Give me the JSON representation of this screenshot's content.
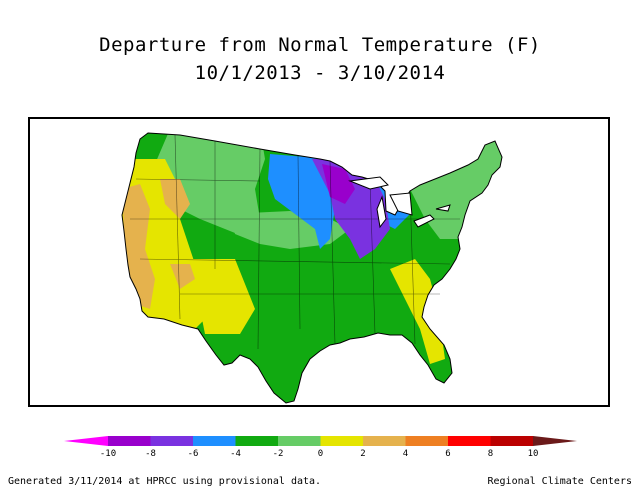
{
  "title": "Departure from Normal Temperature (F)",
  "subtitle": "10/1/2013 - 3/10/2014",
  "legend": {
    "colors": [
      "#ff00ff",
      "#9900cc",
      "#7a32e0",
      "#1e8fff",
      "#11aa11",
      "#66cc66",
      "#e5e500",
      "#e5b24d",
      "#ee7f22",
      "#ff0000",
      "#bb0000",
      "#6b1a1a"
    ],
    "bins": [
      {
        "from": null,
        "to": -10,
        "color": "#ff00ff"
      },
      {
        "from": -10,
        "to": -8,
        "color": "#9900cc"
      },
      {
        "from": -8,
        "to": -6,
        "color": "#7a32e0"
      },
      {
        "from": -6,
        "to": -4,
        "color": "#1e8fff"
      },
      {
        "from": -4,
        "to": -2,
        "color": "#11aa11"
      },
      {
        "from": -2,
        "to": 0,
        "color": "#66cc66"
      },
      {
        "from": 0,
        "to": 2,
        "color": "#e5e500"
      },
      {
        "from": 2,
        "to": 4,
        "color": "#e5b24d"
      },
      {
        "from": 4,
        "to": 6,
        "color": "#ee7f22"
      },
      {
        "from": 6,
        "to": 8,
        "color": "#ff0000"
      },
      {
        "from": 8,
        "to": 10,
        "color": "#bb0000"
      },
      {
        "from": 10,
        "to": null,
        "color": "#6b1a1a"
      }
    ],
    "tick_labels": [
      "-10",
      "-8",
      "-6",
      "-4",
      "-2",
      "0",
      "2",
      "4",
      "6",
      "8",
      "10"
    ]
  },
  "footer": {
    "left": "Generated 3/11/2014 at HPRCC using provisional data.",
    "right": "Regional Climate Centers"
  }
}
